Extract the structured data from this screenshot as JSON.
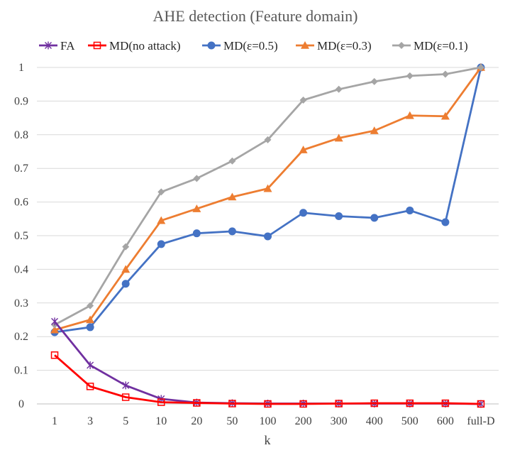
{
  "chart_data": {
    "type": "line",
    "title": "AHE detection (Feature domain)",
    "xlabel": "k",
    "ylabel": "",
    "categories": [
      "1",
      "3",
      "5",
      "10",
      "20",
      "50",
      "100",
      "200",
      "300",
      "400",
      "500",
      "600",
      "full-D"
    ],
    "ylim": [
      0,
      1
    ],
    "yticks": [
      "0",
      "0.1",
      "0.2",
      "0.3",
      "0.4",
      "0.5",
      "0.6",
      "0.7",
      "0.8",
      "0.9",
      "1"
    ],
    "grid": true,
    "legend_position": "top",
    "series": [
      {
        "name": "FA",
        "color": "#7030a0",
        "marker": "star",
        "values": [
          0.245,
          0.115,
          0.055,
          0.015,
          0.004,
          0.002,
          0.001,
          0.001,
          0.001,
          0.001,
          0.001,
          0.001,
          0.0
        ]
      },
      {
        "name": "MD(no attack)",
        "color": "#ff0000",
        "marker": "square-open",
        "values": [
          0.145,
          0.052,
          0.02,
          0.005,
          0.003,
          0.001,
          0.0,
          0.0,
          0.001,
          0.002,
          0.002,
          0.002,
          0.0
        ]
      },
      {
        "name": "MD(ε=0.5)",
        "color": "#4472c4",
        "marker": "circle",
        "values": [
          0.213,
          0.228,
          0.357,
          0.475,
          0.507,
          0.513,
          0.498,
          0.568,
          0.558,
          0.553,
          0.575,
          0.54,
          1.0
        ]
      },
      {
        "name": "MD(ε=0.3)",
        "color": "#ed7d31",
        "marker": "triangle",
        "values": [
          0.22,
          0.25,
          0.4,
          0.545,
          0.58,
          0.615,
          0.64,
          0.755,
          0.79,
          0.812,
          0.857,
          0.855,
          1.0
        ]
      },
      {
        "name": "MD(ε=0.1)",
        "color": "#a5a5a5",
        "marker": "diamond",
        "values": [
          0.235,
          0.292,
          0.467,
          0.63,
          0.67,
          0.722,
          0.785,
          0.903,
          0.935,
          0.958,
          0.975,
          0.98,
          1.0
        ]
      }
    ]
  }
}
